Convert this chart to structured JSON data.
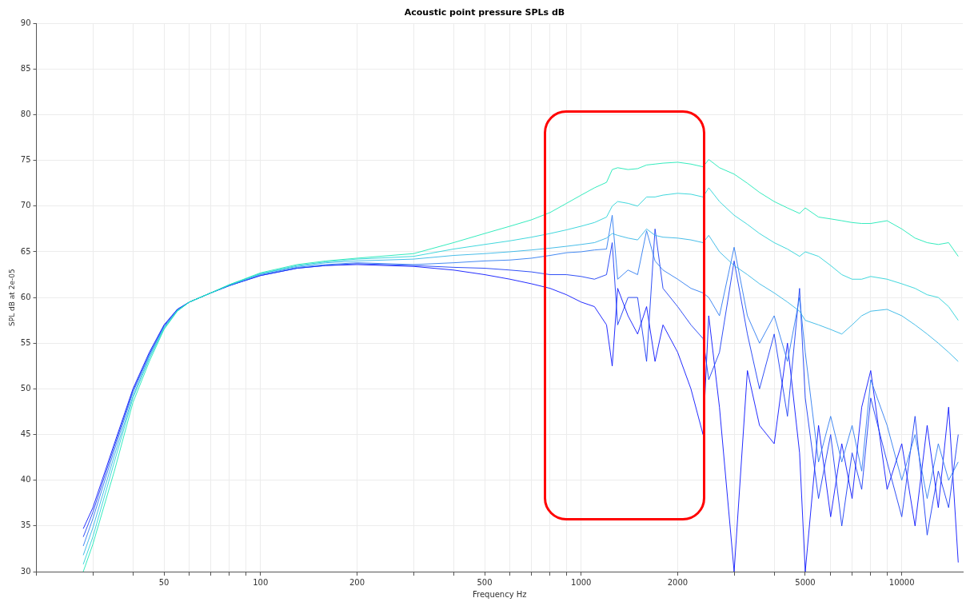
{
  "chart_data": {
    "type": "line",
    "title": "Acoustic point pressure SPLs dB",
    "xlabel": "Frequency Hz",
    "ylabel": "SPL dB at 2e-05",
    "log": "x",
    "grid": true,
    "legend": false,
    "marker": "none",
    "line_style": "solid",
    "xlim": [
      20,
      15500
    ],
    "ylim": [
      30,
      90
    ],
    "xticks": [
      {
        "value": 20,
        "label": null
      },
      {
        "value": 30,
        "label": null
      },
      {
        "value": 40,
        "label": null
      },
      50,
      {
        "value": 60,
        "label": null
      },
      {
        "value": 70,
        "label": null
      },
      {
        "value": 80,
        "label": null
      },
      {
        "value": 90,
        "label": null
      },
      100,
      200,
      {
        "value": 300,
        "label": null
      },
      {
        "value": 400,
        "label": null
      },
      500,
      {
        "value": 600,
        "label": null
      },
      {
        "value": 700,
        "label": null
      },
      {
        "value": 800,
        "label": null
      },
      {
        "value": 900,
        "label": null
      },
      1000,
      2000,
      {
        "value": 3000,
        "label": null
      },
      {
        "value": 4000,
        "label": null
      },
      5000,
      {
        "value": 6000,
        "label": null
      },
      {
        "value": 7000,
        "label": null
      },
      {
        "value": 8000,
        "label": null
      },
      {
        "value": 9000,
        "label": null
      },
      10000
    ],
    "yticks": [
      30,
      35,
      40,
      45,
      50,
      55,
      60,
      65,
      70,
      75,
      80,
      85,
      90
    ],
    "x": [
      28,
      30,
      35,
      40,
      45,
      50,
      55,
      60,
      70,
      80,
      100,
      130,
      160,
      200,
      300,
      400,
      500,
      600,
      700,
      800,
      900,
      1000,
      1100,
      1200,
      1250,
      1300,
      1400,
      1500,
      1600,
      1700,
      1800,
      2000,
      2200,
      2400,
      2500,
      2700,
      3000,
      3300,
      3600,
      4000,
      4400,
      4800,
      5000,
      5500,
      6000,
      6500,
      7000,
      7500,
      8000,
      9000,
      10000,
      11000,
      12000,
      13000,
      14000,
      15000
    ],
    "series": [
      {
        "color": "#1de9b6",
        "values": [
          30,
          33,
          41,
          48.5,
          53,
          56.5,
          58.5,
          59.5,
          60.5,
          61.4,
          62.7,
          63.6,
          64,
          64.3,
          64.8,
          66,
          67,
          67.8,
          68.5,
          69.3,
          70.3,
          71.2,
          72,
          72.6,
          74,
          74.2,
          74,
          74.1,
          74.5,
          74.6,
          74.7,
          74.8,
          74.6,
          74.3,
          75.1,
          74.2,
          73.5,
          72.5,
          71.5,
          70.5,
          69.8,
          69.2,
          69.8,
          68.8,
          68.6,
          68.4,
          68.2,
          68.1,
          68.1,
          68.4,
          67.5,
          66.5,
          66,
          65.8,
          66,
          64.5
        ]
      },
      {
        "color": "#2ad3d8",
        "values": [
          30.8,
          33.8,
          42,
          49,
          53.3,
          56.6,
          58.5,
          59.5,
          60.5,
          61.4,
          62.6,
          63.5,
          63.9,
          64.2,
          64.5,
          65.3,
          65.8,
          66.2,
          66.6,
          67,
          67.4,
          67.8,
          68.2,
          68.8,
          70,
          70.5,
          70.3,
          70,
          71,
          71,
          71.2,
          71.4,
          71.3,
          71,
          72,
          70.5,
          69,
          68,
          67,
          66,
          65.3,
          64.5,
          65,
          64.5,
          63.5,
          62.5,
          62,
          62,
          62.3,
          62,
          61.5,
          61,
          60.3,
          60,
          59,
          57.5
        ]
      },
      {
        "color": "#33b5e5",
        "values": [
          31.8,
          34.8,
          42.7,
          49.2,
          53.5,
          56.7,
          58.6,
          59.5,
          60.5,
          61.4,
          62.6,
          63.4,
          63.8,
          64,
          64.2,
          64.6,
          64.8,
          65,
          65.2,
          65.4,
          65.6,
          65.8,
          66,
          66.5,
          67,
          66.8,
          66.5,
          66.3,
          67.5,
          66.8,
          66.6,
          66.5,
          66.3,
          66,
          66.8,
          65,
          63.5,
          62.5,
          61.5,
          60.5,
          59.5,
          58.5,
          57.5,
          57,
          56.5,
          56,
          57,
          58,
          58.5,
          58.7,
          58,
          57,
          56,
          55,
          54,
          53
        ]
      },
      {
        "color": "#2f7cf0",
        "values": [
          32.8,
          35.8,
          43.3,
          49.6,
          53.7,
          56.8,
          58.6,
          59.5,
          60.5,
          61.3,
          62.5,
          63.3,
          63.6,
          63.8,
          63.6,
          63.8,
          64,
          64.1,
          64.3,
          64.6,
          64.9,
          65,
          65.2,
          65.3,
          69,
          62,
          63,
          62.5,
          67.3,
          64,
          63,
          62,
          61,
          60.5,
          60,
          58,
          65.5,
          58,
          55,
          58,
          53,
          60,
          54,
          42,
          47,
          42,
          46,
          41,
          51,
          46,
          40,
          45,
          38,
          44,
          40,
          42
        ]
      },
      {
        "color": "#1a3cf5",
        "values": [
          33.8,
          36.5,
          43.7,
          49.8,
          53.8,
          56.9,
          58.7,
          59.5,
          60.5,
          61.3,
          62.4,
          63.2,
          63.5,
          63.7,
          63.5,
          63.3,
          63.2,
          63,
          62.8,
          62.5,
          62.5,
          62.3,
          62,
          62.5,
          66,
          57,
          60,
          60,
          53,
          67.5,
          61,
          59,
          57,
          55.5,
          51,
          54,
          64,
          56,
          50,
          56,
          47,
          61,
          49,
          38,
          45,
          35,
          43,
          39,
          49,
          42,
          36,
          47,
          34,
          41,
          37,
          45
        ]
      },
      {
        "color": "#0a14ff",
        "values": [
          34.7,
          37,
          44,
          50,
          54,
          57,
          58.7,
          59.5,
          60.5,
          61.3,
          62.4,
          63.2,
          63.5,
          63.6,
          63.4,
          63,
          62.5,
          62,
          61.5,
          61,
          60.3,
          59.5,
          59,
          57,
          52.5,
          61,
          58,
          56,
          59,
          53,
          57,
          54,
          50,
          45,
          58,
          48,
          30,
          52,
          46,
          44,
          55,
          43,
          30,
          46,
          36,
          44,
          38,
          48,
          52,
          39,
          44,
          35,
          46,
          37,
          48,
          31
        ]
      }
    ]
  }
}
